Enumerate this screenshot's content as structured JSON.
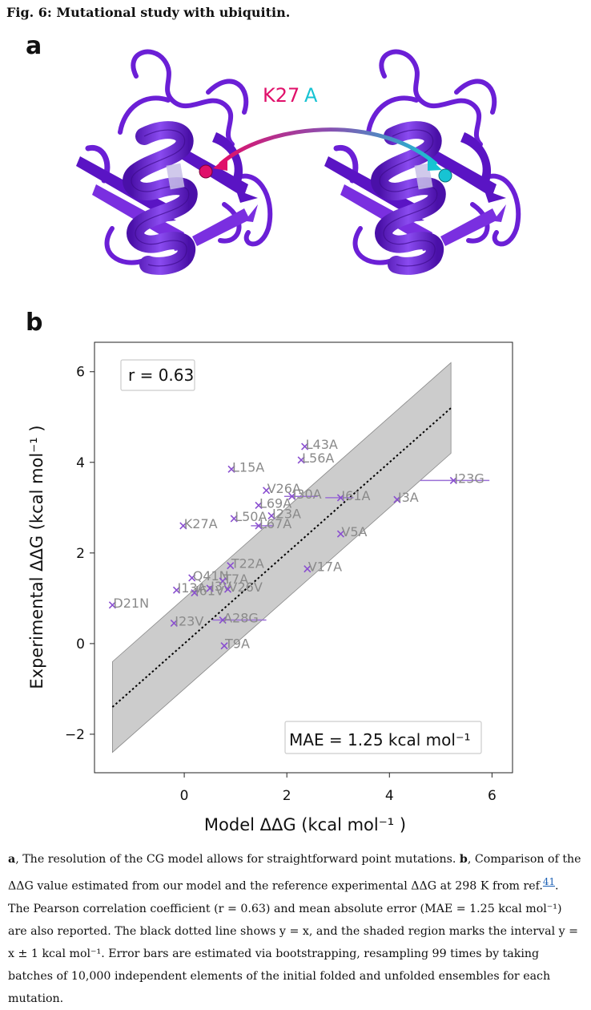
{
  "figure": {
    "title": "Fig. 6: Mutational study with ubiquitin.",
    "panel_a_label": "a",
    "panel_b_label": "b",
    "mutation_label_from": "K27",
    "mutation_label_to": "A",
    "colors": {
      "protein": "#6b1fd6",
      "wildtype_bead": "#e0106a",
      "mutant_bead": "#17c3d3",
      "band": "#cccccc"
    }
  },
  "chart_data": {
    "type": "scatter",
    "xlabel": "Model ΔΔG (kcal mol⁻¹ )",
    "ylabel": "Experimental ΔΔG (kcal mol⁻¹ )",
    "xlim": [
      -1.75,
      6.4
    ],
    "ylim": [
      -2.85,
      6.65
    ],
    "xticks": [
      0,
      2,
      4,
      6
    ],
    "yticks": [
      -2,
      0,
      2,
      4,
      6
    ],
    "xtick_labels": [
      "0",
      "2",
      "4",
      "6"
    ],
    "ytick_labels": [
      "−2",
      "0",
      "2",
      "4",
      "6"
    ],
    "r_label": "r = 0.63",
    "mae_label": "MAE = 1.25 kcal mol⁻¹",
    "identity_line": "y = x",
    "band": "y = x ± 1",
    "points": [
      {
        "label": "D21N",
        "x": -1.4,
        "y": 0.85
      },
      {
        "label": "K27A",
        "x": -0.02,
        "y": 2.6
      },
      {
        "label": "L15A",
        "x": 0.92,
        "y": 3.85
      },
      {
        "label": "L43A",
        "x": 2.35,
        "y": 4.35
      },
      {
        "label": "L56A",
        "x": 2.28,
        "y": 4.05
      },
      {
        "label": "V26A",
        "x": 1.6,
        "y": 3.38
      },
      {
        "label": "I30A",
        "x": 2.1,
        "y": 3.25
      },
      {
        "label": "I61A",
        "x": 3.05,
        "y": 3.22
      },
      {
        "label": "I3A",
        "x": 4.15,
        "y": 3.18
      },
      {
        "label": "I23G",
        "x": 5.25,
        "y": 3.6
      },
      {
        "label": "L69A",
        "x": 1.45,
        "y": 3.05
      },
      {
        "label": "L50A",
        "x": 0.97,
        "y": 2.76
      },
      {
        "label": "I23A",
        "x": 1.7,
        "y": 2.82
      },
      {
        "label": "L67A",
        "x": 1.45,
        "y": 2.6
      },
      {
        "label": "V5A",
        "x": 3.05,
        "y": 2.42
      },
      {
        "label": "T22A",
        "x": 0.9,
        "y": 1.72
      },
      {
        "label": "V17A",
        "x": 2.4,
        "y": 1.65
      },
      {
        "label": "Q41N",
        "x": 0.15,
        "y": 1.45
      },
      {
        "label": "T7A",
        "x": 0.75,
        "y": 1.38
      },
      {
        "label": "I13A",
        "x": -0.15,
        "y": 1.18
      },
      {
        "label": "I61V",
        "x": 0.2,
        "y": 1.12
      },
      {
        "label": "I3V",
        "x": 0.5,
        "y": 1.22
      },
      {
        "label": "V26V",
        "x": 0.85,
        "y": 1.2
      },
      {
        "label": "I23V",
        "x": -0.2,
        "y": 0.45
      },
      {
        "label": "A28G",
        "x": 0.75,
        "y": 0.52
      },
      {
        "label": "T9A",
        "x": 0.78,
        "y": -0.05
      }
    ],
    "errorbars": [
      {
        "y": 3.6,
        "x0": 4.6,
        "x1": 5.95
      },
      {
        "y": 3.22,
        "x0": 2.75,
        "x1": 3.3
      },
      {
        "y": 3.25,
        "x0": 1.95,
        "x1": 2.6
      },
      {
        "y": 0.52,
        "x0": 0.55,
        "x1": 1.6
      },
      {
        "y": 2.6,
        "x0": 1.3,
        "x1": 1.75
      }
    ]
  },
  "caption": {
    "part1_label": "a",
    "part1": ", The resolution of the CG model allows for straightforward point mutations.",
    "part2_label": "b",
    "part2": ", Comparison of the ΔΔG value estimated from our model and the reference experimental ΔΔG at 298 K from ref.",
    "ref": "41",
    "part3": ". The Pearson correlation coefficient (r = 0.63) and mean absolute error (MAE = 1.25 kcal mol⁻¹) are also reported. The black dotted line shows y = x, and the shaded region marks the interval y = x ± 1 kcal mol⁻¹. Error bars are estimated via bootstrapping, resampling 99 times by taking batches of 10,000 independent elements of the initial folded and unfolded ensembles for each mutation."
  }
}
